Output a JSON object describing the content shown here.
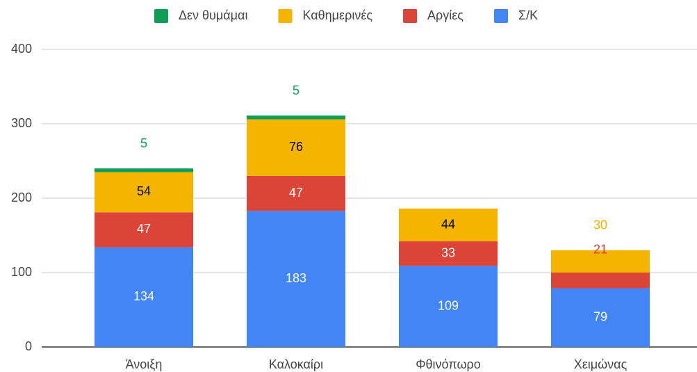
{
  "chart_data": {
    "type": "stacked_bar",
    "categories": [
      "Άνοιξη",
      "Καλοκαίρι",
      "Φθινόπωρο",
      "Χειμώνας"
    ],
    "series": [
      {
        "name": "Σ/Κ",
        "color": "#4285f4",
        "values": [
          134,
          183,
          109,
          79
        ]
      },
      {
        "name": "Αργίες",
        "color": "#db4437",
        "values": [
          47,
          47,
          33,
          21
        ]
      },
      {
        "name": "Καθημερινές",
        "color": "#f4b400",
        "values": [
          54,
          76,
          44,
          30
        ]
      },
      {
        "name": "Δεν θυμάμαι",
        "color": "#0f9d58",
        "values": [
          5,
          5,
          null,
          null
        ]
      }
    ],
    "ylim": [
      0,
      400
    ],
    "yticks": [
      0,
      100,
      200,
      300,
      400
    ],
    "grid": true,
    "legend": "top"
  }
}
